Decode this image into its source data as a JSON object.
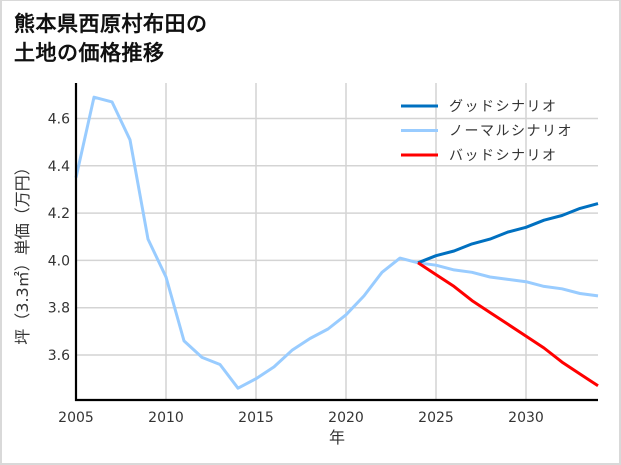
{
  "title": {
    "line1": "熊本県西原村布田の",
    "line2": "土地の価格推移"
  },
  "chart_data": {
    "type": "line",
    "title": "熊本県西原村布田の土地の価格推移",
    "xlabel": "年",
    "ylabel": "坪（3.3㎡）単価（万円）",
    "xlim": [
      2005,
      2034
    ],
    "ylim": [
      3.41,
      4.75
    ],
    "xticks": [
      2005,
      2010,
      2015,
      2020,
      2025,
      2030
    ],
    "xtick_labels": [
      "2005",
      "2010",
      "2015",
      "2020",
      "2025",
      "2030"
    ],
    "yticks": [
      3.6,
      3.8,
      4.0,
      4.2,
      4.4,
      4.6
    ],
    "ytick_labels": [
      "3.6",
      "3.8",
      "4.0",
      "4.2",
      "4.4",
      "4.6"
    ],
    "grid": true,
    "legend_position": "upper right",
    "series": [
      {
        "name": "グッドシナリオ",
        "color": "#0070c0",
        "x": [
          2024,
          2025,
          2026,
          2027,
          2028,
          2029,
          2030,
          2031,
          2032,
          2033,
          2034
        ],
        "values": [
          3.99,
          4.02,
          4.04,
          4.07,
          4.09,
          4.12,
          4.14,
          4.17,
          4.19,
          4.22,
          4.24
        ]
      },
      {
        "name": "ノーマルシナリオ",
        "color": "#99ccff",
        "x": [
          2005,
          2006,
          2007,
          2008,
          2009,
          2010,
          2011,
          2012,
          2013,
          2014,
          2015,
          2016,
          2017,
          2018,
          2019,
          2020,
          2021,
          2022,
          2023,
          2024,
          2025,
          2026,
          2027,
          2028,
          2029,
          2030,
          2031,
          2032,
          2033,
          2034
        ],
        "values": [
          4.35,
          4.69,
          4.67,
          4.51,
          4.09,
          3.93,
          3.66,
          3.59,
          3.56,
          3.46,
          3.5,
          3.55,
          3.62,
          3.67,
          3.71,
          3.77,
          3.85,
          3.95,
          4.01,
          3.99,
          3.98,
          3.96,
          3.95,
          3.93,
          3.92,
          3.91,
          3.89,
          3.88,
          3.86,
          3.85
        ]
      },
      {
        "name": "バッドシナリオ",
        "color": "#ff0000",
        "x": [
          2024,
          2025,
          2026,
          2027,
          2028,
          2029,
          2030,
          2031,
          2032,
          2033,
          2034
        ],
        "values": [
          3.99,
          3.94,
          3.89,
          3.83,
          3.78,
          3.73,
          3.68,
          3.63,
          3.57,
          3.52,
          3.47
        ]
      }
    ],
    "draw_order": [
      1,
      0,
      2
    ],
    "style": {
      "grid_color": "#d4d4d4",
      "axis_color": "#000000"
    }
  }
}
